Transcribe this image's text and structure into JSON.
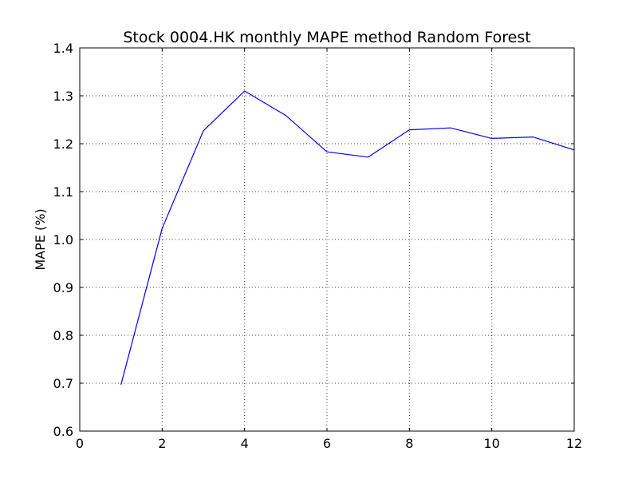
{
  "chart_data": {
    "type": "line",
    "title": "Stock 0004.HK monthly MAPE method Random Forest",
    "xlabel": "",
    "ylabel": "MAPE (%)",
    "xlim": [
      0,
      12
    ],
    "ylim": [
      0.6,
      1.4
    ],
    "xticks": [
      0,
      2,
      4,
      6,
      8,
      10,
      12
    ],
    "xtick_labels": [
      "0",
      "2",
      "4",
      "6",
      "8",
      "10",
      "12"
    ],
    "yticks": [
      0.6,
      0.7,
      0.8,
      0.9,
      1.0,
      1.1,
      1.2,
      1.3,
      1.4
    ],
    "ytick_labels": [
      "0.6",
      "0.7",
      "0.8",
      "0.9",
      "1.0",
      "1.1",
      "1.2",
      "1.3",
      "1.4"
    ],
    "grid": true,
    "series": [
      {
        "color": "#0000ff",
        "x": [
          1,
          2,
          3,
          4,
          5,
          6,
          7,
          8,
          9,
          10,
          11,
          12
        ],
        "y": [
          0.697,
          1.023,
          1.227,
          1.31,
          1.259,
          1.183,
          1.172,
          1.229,
          1.233,
          1.211,
          1.214,
          1.187
        ]
      }
    ]
  }
}
